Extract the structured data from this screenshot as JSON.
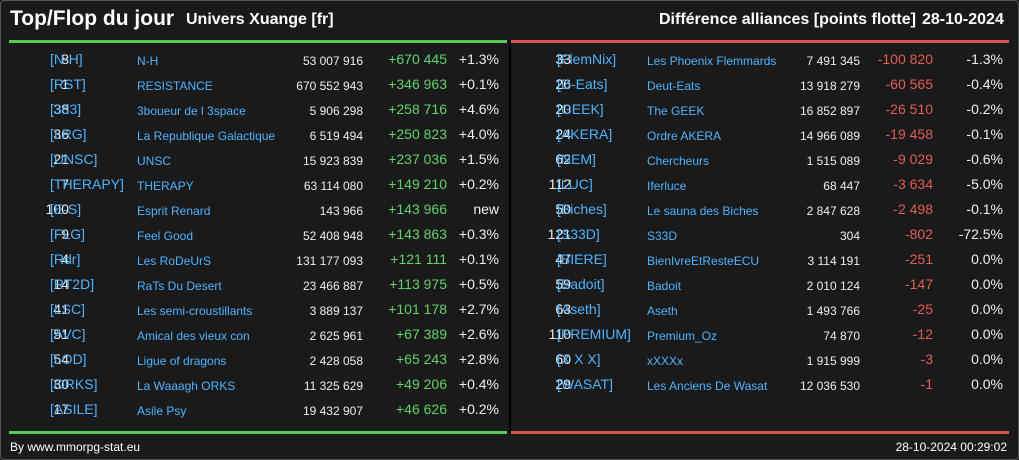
{
  "header": {
    "title": "Top/Flop du jour",
    "universe": "Univers Xuange [fr]",
    "metric": "Différence alliances [points flotte]",
    "date": "28-10-2024"
  },
  "colors": {
    "positive": "#62d26a",
    "negative": "#e05d58",
    "link": "#4fb3ff"
  },
  "top": [
    {
      "rank": "8",
      "tag": "[N-H]",
      "name": "N-H",
      "points": "53 007 916",
      "delta": "+670 445",
      "pct": "+1.3%"
    },
    {
      "rank": "1",
      "tag": "[RST]",
      "name": "RESISTANCE",
      "points": "670 552 943",
      "delta": "+346 963",
      "pct": "+0.1%"
    },
    {
      "rank": "38",
      "tag": "[3d3]",
      "name": "3boueur de l 3space",
      "points": "5 906 298",
      "delta": "+258 716",
      "pct": "+4.6%"
    },
    {
      "rank": "36",
      "tag": "[LRG]",
      "name": "La Republique Galactique",
      "points": "6 519 494",
      "delta": "+250 823",
      "pct": "+4.0%"
    },
    {
      "rank": "21",
      "tag": "[UNSC]",
      "name": "UNSC",
      "points": "15 923 839",
      "delta": "+237 036",
      "pct": "+1.5%"
    },
    {
      "rank": "7",
      "tag": "[THERAPY]",
      "name": "THERAPY",
      "points": "63 114 080",
      "delta": "+149 210",
      "pct": "+0.2%"
    },
    {
      "rank": "100",
      "tag": "[E-S]",
      "name": "Esprit Renard",
      "points": "143 966",
      "delta": "+143 966",
      "pct": "new"
    },
    {
      "rank": "9",
      "tag": "[FLG]",
      "name": "Feel Good",
      "points": "52 408 948",
      "delta": "+143 863",
      "pct": "+0.3%"
    },
    {
      "rank": "4",
      "tag": "[Rdr]",
      "name": "Les RoDeUrS",
      "points": "131 177 093",
      "delta": "+121 111",
      "pct": "+0.1%"
    },
    {
      "rank": "14",
      "tag": "[RT2D]",
      "name": "RaTs Du Desert",
      "points": "23 466 887",
      "delta": "+113 975",
      "pct": "+0.5%"
    },
    {
      "rank": "41",
      "tag": "[LSC]",
      "name": "Les semi-croustillants",
      "points": "3 889 137",
      "delta": "+101 178",
      "pct": "+2.7%"
    },
    {
      "rank": "51",
      "tag": "[AVC]",
      "name": "Amical des vieux con",
      "points": "2 625 961",
      "delta": "+67 389",
      "pct": "+2.6%"
    },
    {
      "rank": "54",
      "tag": "[LOD]",
      "name": "Ligue of dragons",
      "points": "2 428 058",
      "delta": "+65 243",
      "pct": "+2.8%"
    },
    {
      "rank": "30",
      "tag": "[ORKS]",
      "name": "La Waaagh ORKS",
      "points": "11 325 629",
      "delta": "+49 206",
      "pct": "+0.4%"
    },
    {
      "rank": "17",
      "tag": "[ASILE]",
      "name": "Asile Psy",
      "points": "19 432 907",
      "delta": "+46 626",
      "pct": "+0.2%"
    }
  ],
  "flop": [
    {
      "rank": "33",
      "tag": "[FlemNix]",
      "name": "Les Phoenix Flemmards",
      "points": "7 491 345",
      "delta": "-100 820",
      "pct": "-1.3%"
    },
    {
      "rank": "26",
      "tag": "[D-Eats]",
      "name": "Deut-Eats",
      "points": "13 918 279",
      "delta": "-60 565",
      "pct": "-0.4%"
    },
    {
      "rank": "20",
      "tag": "[GEEK]",
      "name": "The GEEK",
      "points": "16 852 897",
      "delta": "-26 510",
      "pct": "-0.2%"
    },
    {
      "rank": "24",
      "tag": "[AKERA]",
      "name": "Ordre AKERA",
      "points": "14 966 089",
      "delta": "-19 458",
      "pct": "-0.1%"
    },
    {
      "rank": "62",
      "tag": "[NEM]",
      "name": "Chercheurs",
      "points": "1 515 089",
      "delta": "-9 029",
      "pct": "-0.6%"
    },
    {
      "rank": "112",
      "tag": "[LUC]",
      "name": "Iferluce",
      "points": "68 447",
      "delta": "-3 634",
      "pct": "-5.0%"
    },
    {
      "rank": "50",
      "tag": "[Biches]",
      "name": "Le sauna des Biches",
      "points": "2 847 628",
      "delta": "-2 498",
      "pct": "-0.1%"
    },
    {
      "rank": "121",
      "tag": "[S33D]",
      "name": "S33D",
      "points": "304",
      "delta": "-802",
      "pct": "-72.5%"
    },
    {
      "rank": "47",
      "tag": "[BIERE]",
      "name": "BienIvreEtResteECU",
      "points": "3 114 191",
      "delta": "-251",
      "pct": "0.0%"
    },
    {
      "rank": "59",
      "tag": "[Badoit]",
      "name": "Badoit",
      "points": "2 010 124",
      "delta": "-147",
      "pct": "0.0%"
    },
    {
      "rank": "63",
      "tag": "[Aseth]",
      "name": "Aseth",
      "points": "1 493 766",
      "delta": "-25",
      "pct": "0.0%"
    },
    {
      "rank": "110",
      "tag": "[PREMIUM]",
      "name": "Premium_Oz",
      "points": "74 870",
      "delta": "-12",
      "pct": "0.0%"
    },
    {
      "rank": "60",
      "tag": "[X X X]",
      "name": "xXXXx",
      "points": "1 915 999",
      "delta": "-3",
      "pct": "0.0%"
    },
    {
      "rank": "29",
      "tag": "[WASAT]",
      "name": "Les Anciens De Wasat",
      "points": "12 036 530",
      "delta": "-1",
      "pct": "0.0%"
    }
  ],
  "footer": {
    "source": "By www.mmorpg-stat.eu",
    "timestamp": "28-10-2024 00:29:02"
  }
}
